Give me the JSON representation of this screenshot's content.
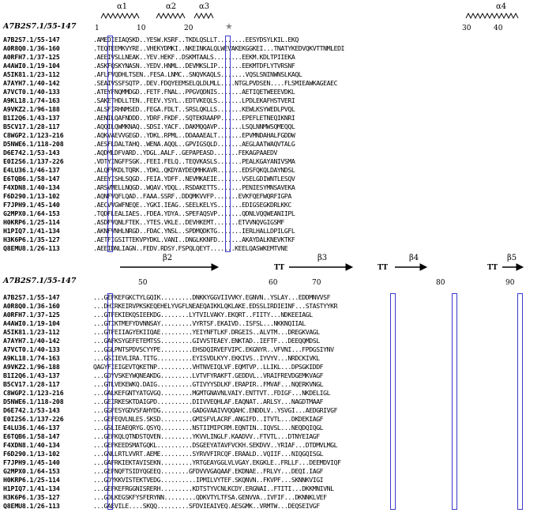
{
  "colors": {
    "frame": "#3a3acc",
    "similar_residue": "#cc2222",
    "text": "#000000"
  },
  "block1": {
    "ref": "A7B2S7.1/55-147",
    "secondary_structure": [
      {
        "label": "α1",
        "type": "helix"
      },
      {
        "label": "α2",
        "type": "helix"
      },
      {
        "label": "α3",
        "type": "helix"
      },
      {
        "label": "α4",
        "type": "helix"
      }
    ],
    "star": "★",
    "ruler": [
      "1",
      "10",
      "20",
      "30",
      "40"
    ],
    "rows": [
      {
        "name": "A7B2S7.1/55-147",
        "seq": ".AMEDIEIAQSKD..YESW.KSRF..TKDLQSLLT........EESYDSYLKIL.EKQ"
      },
      {
        "name": "A0R8Q0.1/36-160",
        "seq": ".TEQTEEMKVYRE..VHEKYDMKI..NKEINKALQLWEVAKEKGGKEI...TNATYKEDVQKVTTNMLEDI"
      },
      {
        "name": "A0RFH7.1/37-125",
        "seq": ".AEEIVSLLNEAK..YEV.HEKF..DSKMTAALS........EEKM.KDLTPIIEKA"
      },
      {
        "name": "A4AWI0.1/19-104",
        "seq": ".ASKFQSKYNASN..YEDV.HNML..DEVMKSLIP.......EEKMTDFLYTVRSNF"
      },
      {
        "name": "A5IK81.1/23-112",
        "seq": ".AFLFVQDHLTSEN..FESA.LNMC..SNQVKAQLS.......VQSLSNINWNSLKAQL"
      },
      {
        "name": "A7AYH7.1/40-142",
        "seq": ".SEAIVSSFSQTP..DEV.FDQYEEMSELQLDLMLL....NTGLPVDSEN....FLSMIEAWKAGEAEC"
      },
      {
        "name": "A7VCT0.1/40-133",
        "seq": ".ATEYFNQMMDGD..FETF.FNAL..PPGVQDNIS.......AETIQETWEEEVDKL"
      },
      {
        "name": "A9KL18.1/74-163",
        "seq": ".SAKETHDLLTEN..FEEV.YSYL..EDTVKEQLS.......LPDLEKAFHSTVERI"
      },
      {
        "name": "A9VKZ2.1/96-188",
        "seq": ".ALSFIRHNMSED..FEGA.FDLT..SRSLQKLLS.......KEWLKSYWEDLPVQL"
      },
      {
        "name": "B1I2Q6.1/43-137",
        "seq": ".AENILQAFNDDD..YDRF.FKDF..SQTEKRAAPP......EPEFLETNEQIKNRI"
      },
      {
        "name": "B5CV17.1/28-117",
        "seq": ".AQQILQWMKNAQ..SDSI.YACF..DAKMQQAVP.......LSQLNNMWSQMEQQL"
      },
      {
        "name": "C8WGP2.1/123-216",
        "seq": ".AQKVAEVVGEGD..YDKL.RPML..DDAAAEALT.......EPVMNDAHALFGDDW"
      },
      {
        "name": "D5NWE6.1/118-208",
        "seq": ".AESFLDALTAHQ..WENA.AQQL..GPVIGSQLD.......AEGLAATWAQVTALG"
      },
      {
        "name": "D6E742.1/53-143",
        "seq": ".AQDMLDFVARD..YDGL.AALF..GEPAPEASD.......FEKAGPAAEDV"
      },
      {
        "name": "E0I2S6.1/137-226",
        "seq": ".VDTYINGFFSGK..FEEI.FELQ..TEQVKASLS.......PEALKGAYANIVSMA"
      },
      {
        "name": "E4LU36.1/46-137",
        "seq": ".ALQFVKDLTQRK..YDKL.QKDYAYDEQMHKAVR.......EDSFQKQLDAYNDSL"
      },
      {
        "name": "E6TQB6.1/58-147",
        "seq": ".AEEYISHLSQGD..FEIA.YDFF..NEVMKAEIE.......VSELGDIWNTLESQV"
      },
      {
        "name": "F4XDN8.1/40-134",
        "seq": ".ARSVMELLNQGD..WQAV.YDQL..RSDAKETTS.......PENIESYMNSAVEKA"
      },
      {
        "name": "F6D290.1/13-102",
        "seq": ".AQNFVQFLQAD..FAAA.SSRF..DDQMKVVFP.......EVKFQEFWQRFIGPA"
      },
      {
        "name": "F7JPH9.1/45-140",
        "seq": ".AECVVGWFNEQE..YGKI.IEAG..SEELKELYS.......EDIGSEGKDRLKKC"
      },
      {
        "name": "G2MPX0.1/64-153",
        "seq": ".TQDFLEALIAES..FDEA.YDYA..SPEFAQSVP.......QDNLVQQWEANIIPL"
      },
      {
        "name": "H0KRP6.1/25-114",
        "seq": ".ASDFVQNLFTEK..YTES.VKLE..DEVHKEMT.......ETVVNQVGIGSMF"
      },
      {
        "name": "H1PIQ7.1/41-134",
        "seq": ".AKNFVNHLNRGD..FDAC.YNSL..SPDMQDKTG.......IERLHALLDPILGFL"
      },
      {
        "name": "H3K6P6.1/35-127",
        "seq": ".AETFIGSITTEKVPYDKL.VANI..DNGLKKNFD.......AKAYDALKNEVKTKF"
      },
      {
        "name": "Q8EMU8.1/26-113",
        "seq": ".AEEIDNLIAGN..FEDV.RDSY.FSPQLQEYT.......KEELQASWKEMTVNE"
      }
    ]
  },
  "block2": {
    "ref": "A7B2S7.1/55-147",
    "secondary_structure": [
      {
        "label": "β2",
        "type": "strand"
      },
      {
        "label": "β3",
        "type": "strand"
      },
      {
        "label": "β4",
        "type": "strand"
      },
      {
        "label": "β5",
        "type": "strand"
      },
      {
        "label": "TT",
        "type": "turn"
      },
      {
        "label": "TT",
        "type": "turn"
      },
      {
        "label": "TT",
        "type": "turn"
      }
    ],
    "ruler": [
      "50",
      "60",
      "70",
      "80",
      "90"
    ],
    "rows": [
      {
        "name": "A7B2S7.1/55-147",
        "seq": "...GEFKEFGKCTYLGQIK.........DNKKYGGVIIVVKY.EGNVN..YSLAY...EDDMNVVSF"
      },
      {
        "name": "A0R8Q0.1/36-160",
        "seq": "...DHIRKEIRVPKSKEQEHELYVGFLNEAEQAIKKLQKLAKE.EDSSLIRDIEINF...STASTYYKR"
      },
      {
        "name": "A0RFH7.1/37-125",
        "seq": "...GTFEKIEKQSIEEKDG........LYTVILVAKY.EKQRT..FIITY...NDKEEIAGL"
      },
      {
        "name": "A4AWI0.1/19-104",
        "seq": "...GTIKTMEFYDVNNSAY.........VYRTSF.EKAIVD..ISFSL...NKKNQIIAL"
      },
      {
        "name": "A5IK81.1/23-112",
        "seq": "...GTFEIIAGYEKIIQAE.........YEIYNFTLKF.DRGEIS..ALVTM...DREGKVAGL"
      },
      {
        "name": "A7AYH7.1/40-142",
        "seq": "...GAFKSYGEFETEMTSS.........GIVVSTEAEY.ENKTAD..IEFTF...DEEQQMDSL"
      },
      {
        "name": "A7VCT0.1/40-133",
        "seq": "...GGLPNTSPDVSCYYPE.........EHSDQIRVEFVIPC.EKGNYR..VFVNI...FPDGSIYNV"
      },
      {
        "name": "A9KL18.1/74-163",
        "seq": "...GSIIEVLIRA.TITG..........EYISVDLKYY.EKKIVS..IYVYV...NRDCKIVKL"
      },
      {
        "name": "A9VKZ2.1/96-188",
        "seq": "QAGYFIEIGEVTQKETNP..........VHTNVEIQLVF.EQMTVP..LLIKL...DPSGKIDDF"
      },
      {
        "name": "B1I2Q6.1/43-137",
        "seq": "...GDYVSKEYWQNEAKDG.........LVTVFYRAKFT.GEDDVL..VRAIFREVDGEMKVAGF"
      },
      {
        "name": "B5CV17.1/28-117",
        "seq": "...GTLVEKEWKQ.DAIG..........GTIVYYSDLKF.ERAPIR..FMVAF...NQERKVNGL"
      },
      {
        "name": "C8WGP2.1/123-216",
        "seq": "...GALKEFGNTYATGVGQ.........MGMTGNAVNLVAIY.ENTTVT..FDIGF...NKDELIGL"
      },
      {
        "name": "D5NWE6.1/118-208",
        "seq": "...GEIRKESKTDAIGPD..........DIIVVEQHLAF.EAQNAT..ARLSY...NAGDTMAAF"
      },
      {
        "name": "D6E742.1/53-143",
        "seq": "...GGFESYGDVSFAHYDG.........GADGVAAIVVQQAHC.ENDDLV..YSVGI...AEDGRIVGF"
      },
      {
        "name": "E0I2S6.1/137-226",
        "seq": "...GEFEQVLNLES.SKSD.........GMISFVLACRF.ANGIFD..ITVTL...DKDEKIAGF"
      },
      {
        "name": "E4LU36.1/46-137",
        "seq": "...GSLIEAEQRYG.QSYQ.........NSTIIMIPCRM.EQNTIN..IQVSL...NEQDQIQGL"
      },
      {
        "name": "E6TQB6.1/58-147",
        "seq": "...GEFKQLQTNDSTQVEN.........YKVVLINGLF.KAADVV..FTVTL...DTNYEIAGF"
      },
      {
        "name": "F4XDN8.1/40-134",
        "seq": "...GEFKEEDSMATGQKL..........DSGEEYATAVFVCKH.SEKDVV..YRIAF...DTDMVLMGL"
      },
      {
        "name": "F6D290.1/13-102",
        "seq": "...GNLLRTLVVRT.AEME.........SYRVVFIRCQF.ERAALD..VQIIF...NIQGQISGL"
      },
      {
        "name": "F7JPH9.1/45-140",
        "seq": "...GAFRKIEKTAVISEKN.........YRTGEAYGGLVLVGAY.EKGKLE..FRLLF...DEEMDVIQF"
      },
      {
        "name": "G2MPX0.1/64-153",
        "seq": "...GEFNQFTSIDYQGEEQ........GFDVVVGAQAAF.EKDNAE..FRLVY...DEQI.IAGF"
      },
      {
        "name": "H0KRP6.1/25-114",
        "seq": "...GDYKKVISTEKTVEDG..........IPMILVYTEF.SKQNVN..FKVPF...SKNNKVIGI"
      },
      {
        "name": "H1PIQ7.1/41-134",
        "seq": "...GEFKEFRGGNISRERH.........KDTSTYVCNLKCDY.ERGNAI..FTITI...DKKMNIVNL"
      },
      {
        "name": "H3K6P6.1/35-127",
        "seq": "...GDLKEGSKFYSFERYNN.........QDKVTYLTFSA.GENVVA..IVFIF...DKNNKLVEF"
      },
      {
        "name": "Q8EMU8.1/26-113",
        "seq": "...GAEVILE....SKQQ.........SFDVIEAIVEQ.AESGMK..VRMTW...DEQSEIVGF"
      }
    ]
  }
}
